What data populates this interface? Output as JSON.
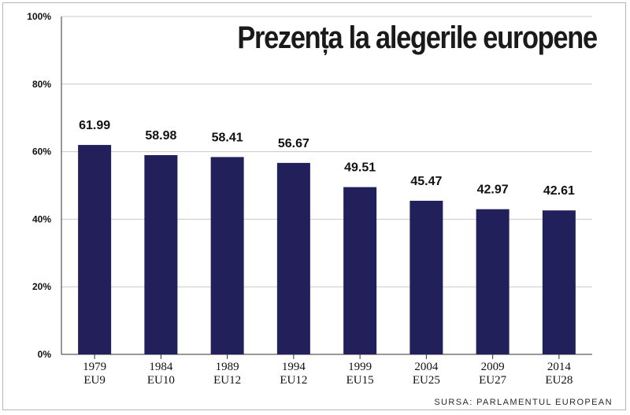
{
  "chart_data": {
    "type": "bar",
    "title": "Prezența la alegerile europene",
    "source": "SURSA: PARLAMENTUL EUROPEAN",
    "categories": [
      [
        "1979",
        "EU9"
      ],
      [
        "1984",
        "EU10"
      ],
      [
        "1989",
        "EU12"
      ],
      [
        "1994",
        "EU12"
      ],
      [
        "1999",
        "EU15"
      ],
      [
        "2004",
        "EU25"
      ],
      [
        "2009",
        "EU27"
      ],
      [
        "2014",
        "EU28"
      ]
    ],
    "values": [
      61.99,
      58.98,
      58.41,
      56.67,
      49.51,
      45.47,
      42.97,
      42.61
    ],
    "data_labels": [
      "61.99",
      "58.98",
      "58.41",
      "56.67",
      "49.51",
      "45.47",
      "42.97",
      "42.61"
    ],
    "ylim": [
      0,
      100
    ],
    "yticks": [
      0,
      20,
      40,
      60,
      80,
      100
    ],
    "ytick_labels": [
      "0%",
      "20%",
      "40%",
      "60%",
      "80%",
      "100%"
    ],
    "xlabel": "",
    "ylabel": "",
    "grid": true,
    "bar_color": "#22205a",
    "grid_color": "#c9c9c9",
    "axis_color": "#333333",
    "text_color": "#111111"
  }
}
